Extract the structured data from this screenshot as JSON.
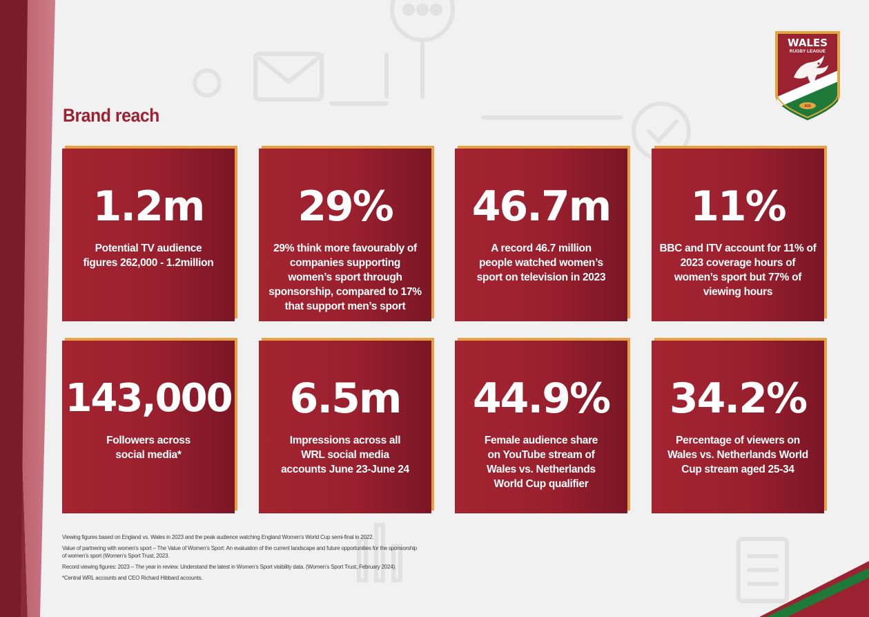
{
  "header": {
    "title": "Brand reach"
  },
  "logo": {
    "name": "WALES",
    "subtitle": "RUGBY LEAGUE",
    "badge": "XIII",
    "colors": {
      "red": "#9b2230",
      "green": "#1f7a3a",
      "gold": "#e0a73e",
      "white": "#ffffff"
    }
  },
  "stats": [
    {
      "value": "1.2m",
      "description": "Potential TV audience figures 262,000 - 1.2million"
    },
    {
      "value": "29%",
      "description": "29% think more favourably of companies supporting women’s sport through sponsorship, compared to 17%  that support men’s sport"
    },
    {
      "value": "46.7m",
      "description": "A record 46.7 million people watched women’s sport on television in 2023"
    },
    {
      "value": "11%",
      "description": "BBC and ITV account for 11% of 2023 coverage hours of women’s sport but 77% of viewing hours"
    },
    {
      "value": "143,000",
      "description": "Followers across social media*"
    },
    {
      "value": "6.5m",
      "description": "Impressions across all WRL social media accounts June 23-June 24"
    },
    {
      "value": "44.9%",
      "description": "Female audience share on YouTube stream of Wales vs. Netherlands World Cup qualifier"
    },
    {
      "value": "34.2%",
      "description": "Percentage of viewers on Wales vs. Netherlands World Cup stream aged 25-34"
    }
  ],
  "footnotes": [
    "Viewing figures based on England vs. Wales in 2023 and the peak audience watching England Women’s World Cup semi-final in 2022.",
    "Value of partnering with women’s sport – The Value of Women’s Sport: An evaluation of the current landscape and future opportunities for the sponsorship of women’s sport (Women’s Sport Trust, 2023.",
    "Record viewing figures: 2023 – The year in review. Understand the latest in Women’s Sport visibility data. (Women’s Sport Trust, February 2024).",
    "*Central WRL accounts and CEO Richard Hibbard accounts."
  ],
  "colors": {
    "brand_red": "#9b2230",
    "accent_orange": "#e9a042",
    "background": "#f1f1f1"
  }
}
